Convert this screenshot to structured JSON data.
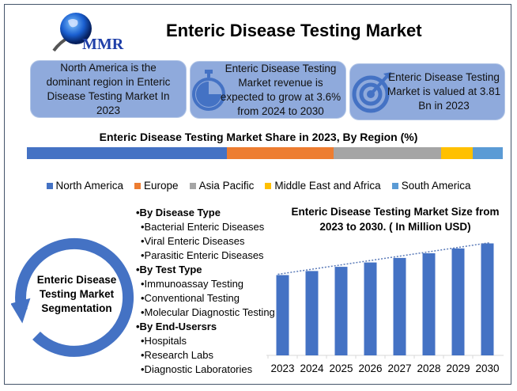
{
  "header": {
    "logo_text": "MMR",
    "title": "Enteric Disease Testing Market"
  },
  "cards": [
    {
      "text": "North America is the dominant region in Enteric Disease Testing Market In 2023",
      "icon": "none"
    },
    {
      "text": "Enteric Disease Testing Market revenue is expected to grow at 3.6% from 2024 to 2030",
      "icon": "stopwatch-icon"
    },
    {
      "text": "Enteric Disease Testing Market is valued at 3.81 Bn in 2023",
      "icon": "target-icon"
    }
  ],
  "share": {
    "title": "Enteric Disease Testing Market Share in 2023, By Region (%)",
    "segments": [
      {
        "name": "North America",
        "value": 42,
        "color": "#4472c4"
      },
      {
        "name": "Europe",
        "value": 22.5,
        "color": "#ed7d31"
      },
      {
        "name": "Asia Pacific",
        "value": 22.5,
        "color": "#a5a5a5"
      },
      {
        "name": "Middle East and Africa",
        "value": 6.7,
        "color": "#ffc000"
      },
      {
        "name": "South America",
        "value": 6.3,
        "color": "#5b9bd5"
      }
    ]
  },
  "segmentation": {
    "title": "Enteric Disease Testing Market Segmentation",
    "groups": [
      {
        "heading": "•By Disease Type",
        "items": [
          "•Bacterial Enteric Diseases",
          "•Viral Enteric Diseases",
          "•Parasitic Enteric Diseases"
        ]
      },
      {
        "heading": "•By Test Type",
        "items": [
          "•Immunoassay Testing",
          "•Conventional Testing",
          "•Molecular Diagnostic Testing"
        ]
      },
      {
        "heading": "•By End-Usersrs",
        "items": [
          "•Hospitals",
          "•Research Labs",
          "•Diagnostic Laboratories"
        ]
      }
    ]
  },
  "chart_data": {
    "type": "bar",
    "title": "Enteric Disease Testing Market  Size from 2023 to 2030. ( In Million  USD)",
    "categories": [
      "2023",
      "2024",
      "2025",
      "2026",
      "2027",
      "2028",
      "2029",
      "2030"
    ],
    "values": [
      3810,
      3947,
      4089,
      4236,
      4389,
      4547,
      4710,
      4880
    ],
    "ylim": [
      1100,
      5000
    ],
    "trendline": "dotted linear",
    "grid": false,
    "color": "#4472c4"
  }
}
